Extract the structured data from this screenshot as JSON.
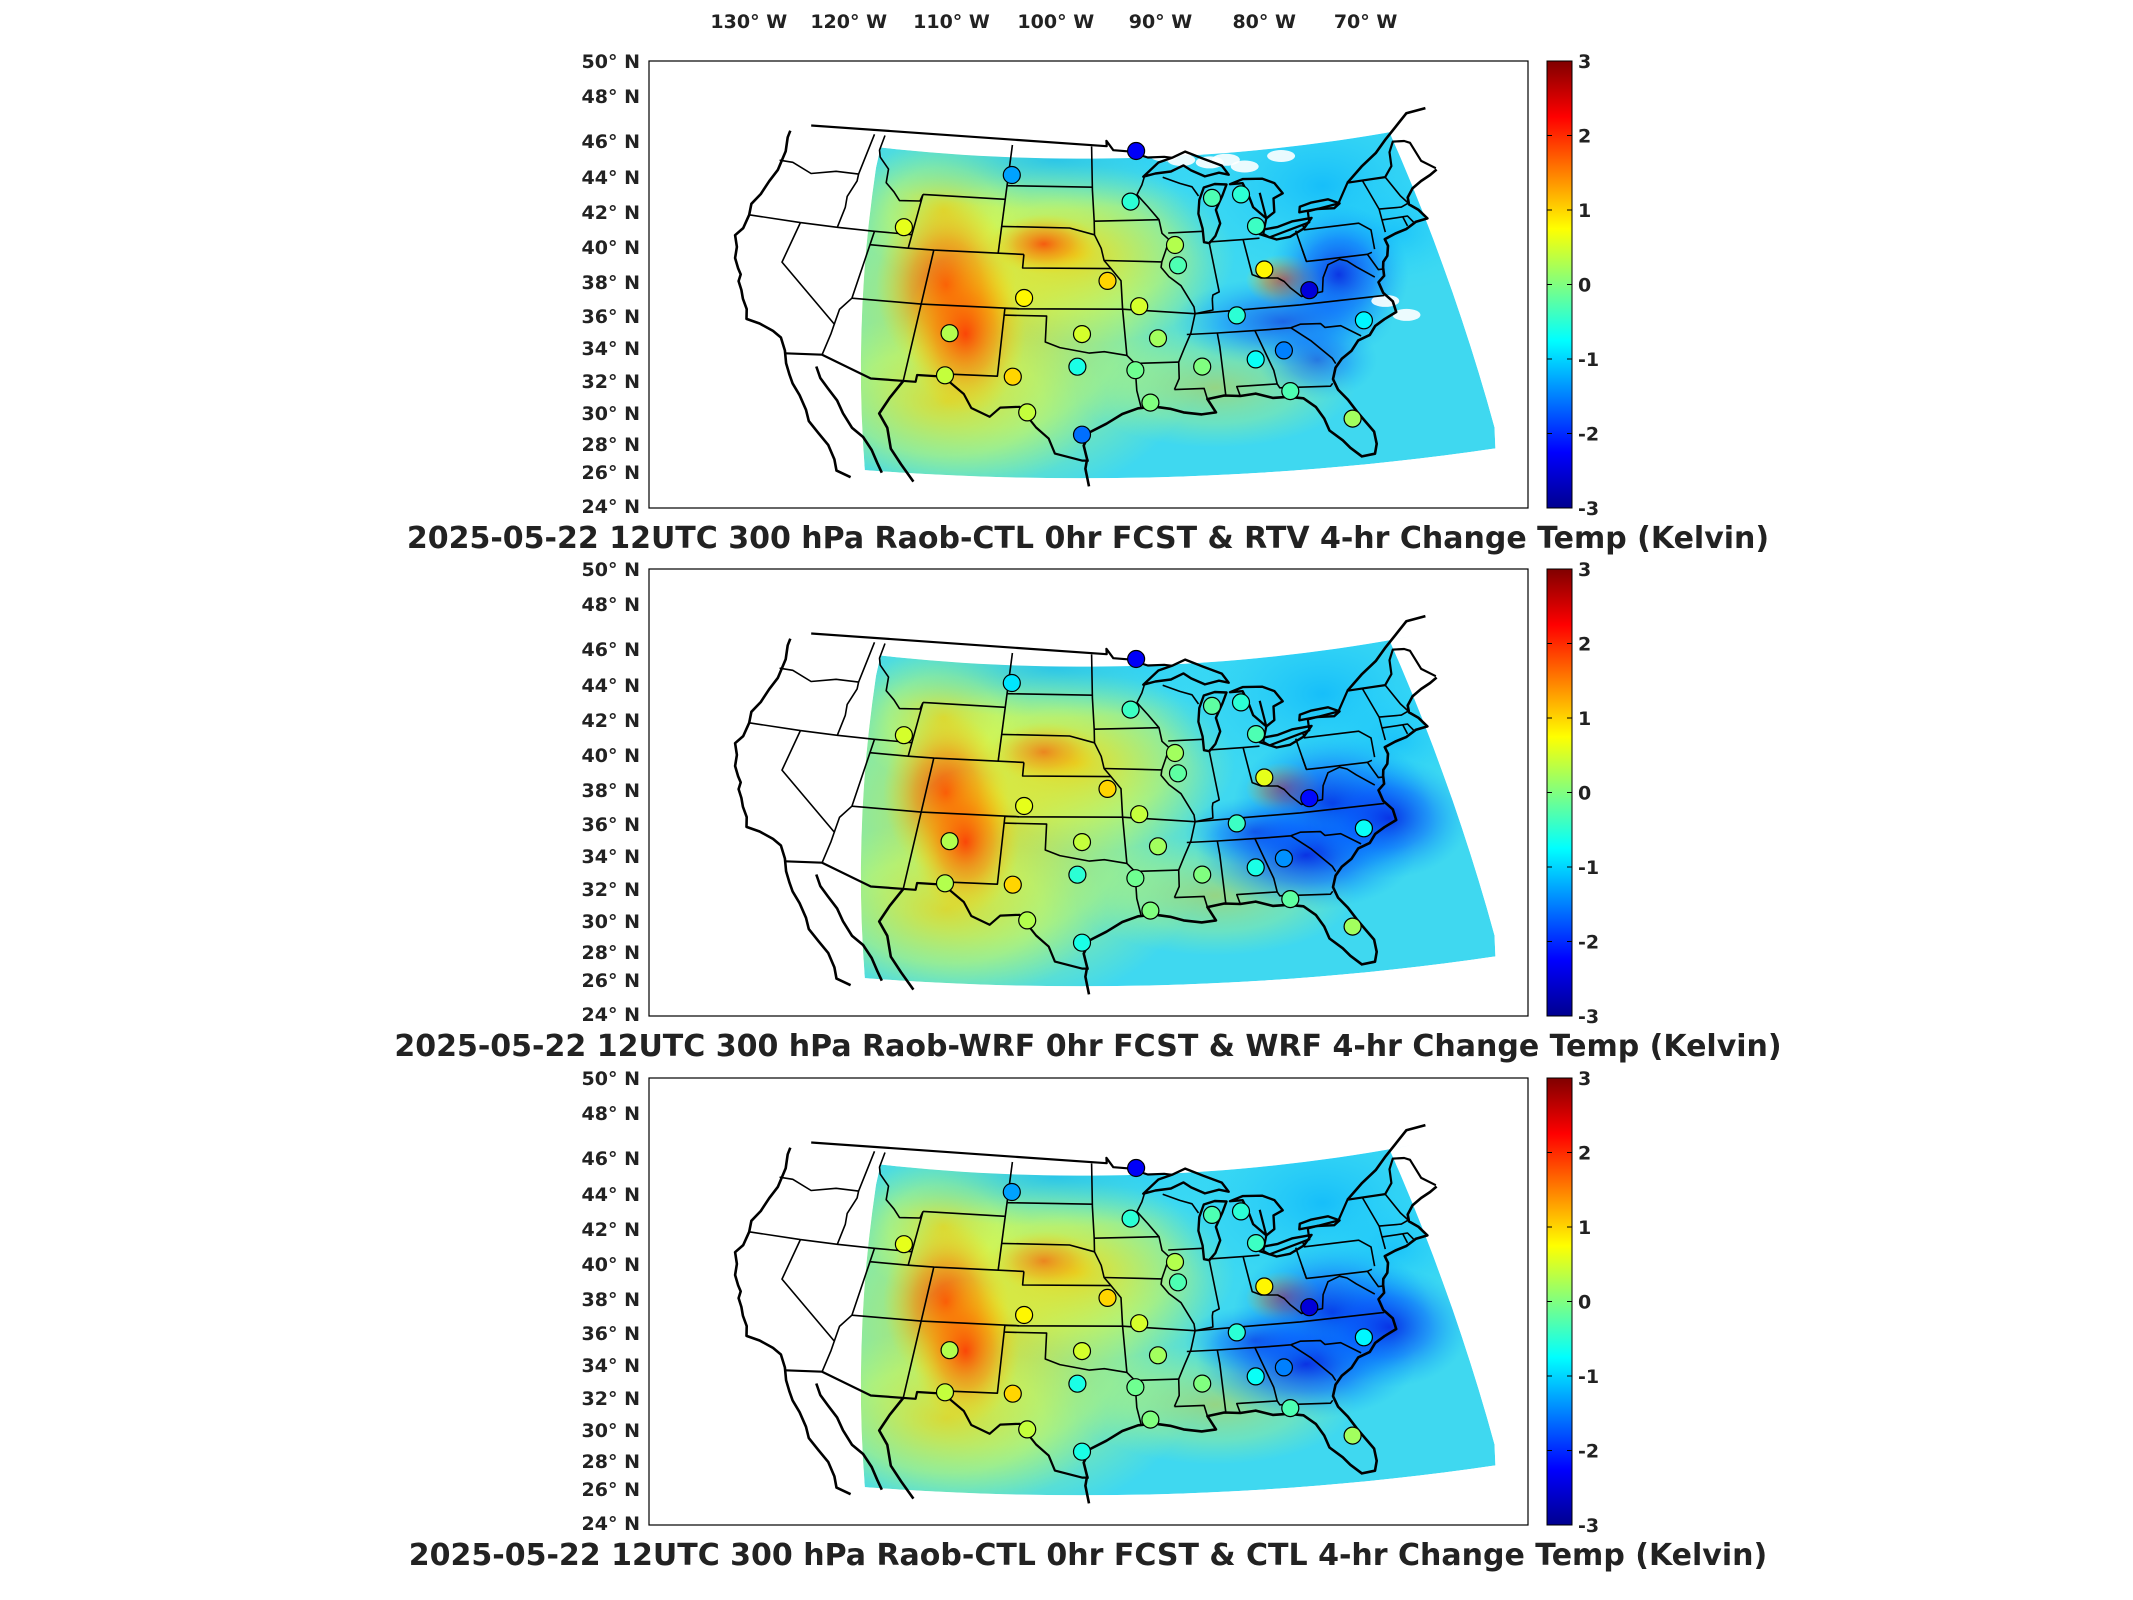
{
  "figure": {
    "lon_labels": [
      "130° W",
      "120° W",
      "110° W",
      "100° W",
      "90° W",
      "80° W",
      "70° W"
    ],
    "lat_labels": [
      "50° N",
      "48° N",
      "46° N",
      "44° N",
      "42° N",
      "40° N",
      "38° N",
      "36° N",
      "34° N",
      "32° N",
      "30° N",
      "28° N",
      "26° N",
      "24° N"
    ],
    "colorbar_ticks": [
      "3",
      "2",
      "1",
      "0",
      "-1",
      "-2",
      "-3"
    ],
    "colorbar_range": [
      -3,
      3
    ],
    "colormap": "jet",
    "colormap_stops": [
      "#00008f",
      "#0000ff",
      "#0080ff",
      "#00ffff",
      "#80ff80",
      "#ffff00",
      "#ff8000",
      "#ff0000",
      "#800000"
    ]
  },
  "panels": [
    {
      "title": "2025-05-22 12UTC 300 hPa Raob-CTL 0hr FCST & RTV 4-hr Change Temp (Kelvin)",
      "stations": [
        {
          "lon": -92.5,
          "lat": 48.6,
          "value": -2.3
        },
        {
          "lon": -103.7,
          "lat": 46.8,
          "value": -1.3
        },
        {
          "lon": -93.4,
          "lat": 44.9,
          "value": -0.5
        },
        {
          "lon": -86.5,
          "lat": 44.9,
          "value": -0.3
        },
        {
          "lon": -84.0,
          "lat": 45.0,
          "value": -0.5
        },
        {
          "lon": -83.5,
          "lat": 42.6,
          "value": -0.4
        },
        {
          "lon": -111.8,
          "lat": 42.5,
          "value": 0.6
        },
        {
          "lon": -90.2,
          "lat": 41.6,
          "value": 0.3
        },
        {
          "lon": -90.2,
          "lat": 40.1,
          "value": -0.3
        },
        {
          "lon": -83.8,
          "lat": 39.4,
          "value": 0.8
        },
        {
          "lon": -95.6,
          "lat": 39.1,
          "value": 1.0
        },
        {
          "lon": -101.7,
          "lat": 37.8,
          "value": 0.8
        },
        {
          "lon": -93.4,
          "lat": 37.2,
          "value": 0.5
        },
        {
          "lon": -81.0,
          "lat": 37.6,
          "value": -2.5
        },
        {
          "lon": -86.6,
          "lat": 36.2,
          "value": -0.5
        },
        {
          "lon": -106.6,
          "lat": 35.0,
          "value": 0.3
        },
        {
          "lon": -97.5,
          "lat": 35.2,
          "value": 0.5
        },
        {
          "lon": -92.3,
          "lat": 34.8,
          "value": 0.2
        },
        {
          "lon": -78.0,
          "lat": 35.0,
          "value": -0.8
        },
        {
          "lon": -89.6,
          "lat": 32.6,
          "value": 0.0
        },
        {
          "lon": -86.0,
          "lat": 32.9,
          "value": -0.7
        },
        {
          "lon": -84.0,
          "lat": 33.4,
          "value": -1.5
        },
        {
          "lon": -97.8,
          "lat": 32.8,
          "value": -0.6
        },
        {
          "lon": -94.0,
          "lat": 32.5,
          "value": -0.1
        },
        {
          "lon": -102.0,
          "lat": 32.0,
          "value": 1.0
        },
        {
          "lon": -106.4,
          "lat": 31.9,
          "value": 0.4
        },
        {
          "lon": -93.2,
          "lat": 30.1,
          "value": 0.0
        },
        {
          "lon": -84.3,
          "lat": 30.4,
          "value": -0.3
        },
        {
          "lon": -100.9,
          "lat": 29.4,
          "value": 0.4
        },
        {
          "lon": -97.5,
          "lat": 27.8,
          "value": -1.6
        },
        {
          "lon": -81.0,
          "lat": 28.0,
          "value": 0.2
        }
      ]
    },
    {
      "title": "2025-05-22 12UTC 300 hPa Raob-WRF 0hr FCST & WRF 4-hr Change Temp (Kelvin)",
      "stations": [
        {
          "lon": -92.5,
          "lat": 48.6,
          "value": -2.3
        },
        {
          "lon": -103.7,
          "lat": 46.8,
          "value": -0.9
        },
        {
          "lon": -93.4,
          "lat": 44.9,
          "value": -0.4
        },
        {
          "lon": -86.5,
          "lat": 44.9,
          "value": -0.2
        },
        {
          "lon": -84.0,
          "lat": 45.0,
          "value": -0.5
        },
        {
          "lon": -83.5,
          "lat": 42.6,
          "value": -0.3
        },
        {
          "lon": -111.8,
          "lat": 42.5,
          "value": 0.5
        },
        {
          "lon": -90.2,
          "lat": 41.6,
          "value": 0.2
        },
        {
          "lon": -90.2,
          "lat": 40.1,
          "value": -0.2
        },
        {
          "lon": -83.8,
          "lat": 39.4,
          "value": 0.6
        },
        {
          "lon": -95.6,
          "lat": 39.1,
          "value": 1.0
        },
        {
          "lon": -101.7,
          "lat": 37.8,
          "value": 0.6
        },
        {
          "lon": -93.4,
          "lat": 37.2,
          "value": 0.4
        },
        {
          "lon": -81.0,
          "lat": 37.6,
          "value": -2.2
        },
        {
          "lon": -86.6,
          "lat": 36.2,
          "value": -0.4
        },
        {
          "lon": -106.6,
          "lat": 35.0,
          "value": 0.3
        },
        {
          "lon": -97.5,
          "lat": 35.2,
          "value": 0.4
        },
        {
          "lon": -92.3,
          "lat": 34.8,
          "value": 0.2
        },
        {
          "lon": -78.0,
          "lat": 35.0,
          "value": -0.7
        },
        {
          "lon": -89.6,
          "lat": 32.6,
          "value": 0.0
        },
        {
          "lon": -86.0,
          "lat": 32.9,
          "value": -0.6
        },
        {
          "lon": -84.0,
          "lat": 33.4,
          "value": -1.4
        },
        {
          "lon": -97.8,
          "lat": 32.8,
          "value": -0.5
        },
        {
          "lon": -94.0,
          "lat": 32.5,
          "value": -0.1
        },
        {
          "lon": -102.0,
          "lat": 32.0,
          "value": 1.0
        },
        {
          "lon": -106.4,
          "lat": 31.9,
          "value": 0.3
        },
        {
          "lon": -93.2,
          "lat": 30.1,
          "value": 0.0
        },
        {
          "lon": -84.3,
          "lat": 30.4,
          "value": -0.2
        },
        {
          "lon": -100.9,
          "lat": 29.4,
          "value": 0.3
        },
        {
          "lon": -97.5,
          "lat": 27.8,
          "value": -0.6
        },
        {
          "lon": -81.0,
          "lat": 28.0,
          "value": 0.2
        }
      ]
    },
    {
      "title": "2025-05-22 12UTC 300 hPa Raob-CTL 0hr FCST & CTL 4-hr Change Temp (Kelvin)",
      "stations": [
        {
          "lon": -92.5,
          "lat": 48.6,
          "value": -2.3
        },
        {
          "lon": -103.7,
          "lat": 46.8,
          "value": -1.3
        },
        {
          "lon": -93.4,
          "lat": 44.9,
          "value": -0.5
        },
        {
          "lon": -86.5,
          "lat": 44.9,
          "value": -0.3
        },
        {
          "lon": -84.0,
          "lat": 45.0,
          "value": -0.5
        },
        {
          "lon": -83.5,
          "lat": 42.6,
          "value": -0.4
        },
        {
          "lon": -111.8,
          "lat": 42.5,
          "value": 0.6
        },
        {
          "lon": -90.2,
          "lat": 41.6,
          "value": 0.3
        },
        {
          "lon": -90.2,
          "lat": 40.1,
          "value": -0.3
        },
        {
          "lon": -83.8,
          "lat": 39.4,
          "value": 0.8
        },
        {
          "lon": -95.6,
          "lat": 39.1,
          "value": 1.0
        },
        {
          "lon": -101.7,
          "lat": 37.8,
          "value": 0.8
        },
        {
          "lon": -93.4,
          "lat": 37.2,
          "value": 0.5
        },
        {
          "lon": -81.0,
          "lat": 37.6,
          "value": -2.5
        },
        {
          "lon": -86.6,
          "lat": 36.2,
          "value": -0.5
        },
        {
          "lon": -106.6,
          "lat": 35.0,
          "value": 0.3
        },
        {
          "lon": -97.5,
          "lat": 35.2,
          "value": 0.5
        },
        {
          "lon": -92.3,
          "lat": 34.8,
          "value": 0.2
        },
        {
          "lon": -78.0,
          "lat": 35.0,
          "value": -0.8
        },
        {
          "lon": -89.6,
          "lat": 32.6,
          "value": 0.0
        },
        {
          "lon": -86.0,
          "lat": 32.9,
          "value": -0.7
        },
        {
          "lon": -84.0,
          "lat": 33.4,
          "value": -1.5
        },
        {
          "lon": -97.8,
          "lat": 32.8,
          "value": -0.6
        },
        {
          "lon": -94.0,
          "lat": 32.5,
          "value": -0.1
        },
        {
          "lon": -102.0,
          "lat": 32.0,
          "value": 1.0
        },
        {
          "lon": -106.4,
          "lat": 31.9,
          "value": 0.4
        },
        {
          "lon": -93.2,
          "lat": 30.1,
          "value": 0.0
        },
        {
          "lon": -84.3,
          "lat": 30.4,
          "value": -0.3
        },
        {
          "lon": -100.9,
          "lat": 29.4,
          "value": 0.4
        },
        {
          "lon": -97.5,
          "lat": 27.8,
          "value": -0.6
        },
        {
          "lon": -81.0,
          "lat": 28.0,
          "value": 0.2
        }
      ]
    }
  ]
}
